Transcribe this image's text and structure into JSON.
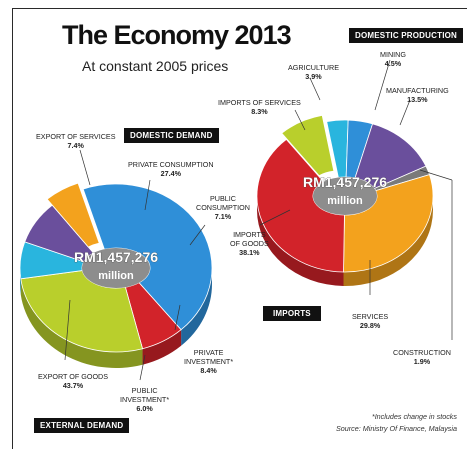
{
  "header": {
    "title": "The Economy 2013",
    "subtitle": "At constant 2005 prices"
  },
  "tags": {
    "domestic_demand": "DOMESTIC DEMAND",
    "external_demand": "EXTERNAL DEMAND",
    "domestic_production": "DOMESTIC PRODUCTION",
    "imports": "IMPORTS"
  },
  "notes": {
    "footnote": "*Includes change in stocks",
    "source": "Source: Ministry Of Finance, Malaysia"
  },
  "colors": {
    "blue": "#2f8fd8",
    "red": "#d2232a",
    "yellowgreen": "#b9cf2c",
    "cyan": "#29b5de",
    "purple": "#6a4f9c",
    "orange": "#f3a21d",
    "grey": "#7a7a7a"
  },
  "chart_data": [
    {
      "type": "pie",
      "total_label": "RM1,457,276",
      "total_unit": "million",
      "slices": [
        {
          "label": "EXPORT OF GOODS",
          "value": 43.7,
          "display": "43.7%",
          "color": "#2f8fd8"
        },
        {
          "label": "EXPORT OF SERVICES",
          "value": 7.4,
          "display": "7.4%",
          "color": "#d2232a"
        },
        {
          "label": "PRIVATE CONSUMPTION",
          "value": 27.4,
          "display": "27.4%",
          "color": "#b9cf2c"
        },
        {
          "label": "PUBLIC CONSUMPTION",
          "value": 7.1,
          "display": "7.1%",
          "color": "#29b5de"
        },
        {
          "label": "PRIVATE INVESTMENT*",
          "value": 8.4,
          "display": "8.4%",
          "color": "#6a4f9c"
        },
        {
          "label": "PUBLIC INVESTMENT*",
          "value": 6.0,
          "display": "6.0%",
          "color": "#f3a21d"
        }
      ]
    },
    {
      "type": "pie",
      "total_label": "RM1,457,276",
      "total_unit": "million",
      "slices": [
        {
          "label": "AGRICULTURE",
          "value": 3.9,
          "display": "3.9%",
          "color": "#29b5de"
        },
        {
          "label": "MINING",
          "value": 4.5,
          "display": "4.5%",
          "color": "#2f8fd8"
        },
        {
          "label": "MANUFACTURING",
          "value": 13.5,
          "display": "13.5%",
          "color": "#6a4f9c"
        },
        {
          "label": "CONSTRUCTION",
          "value": 1.9,
          "display": "1.9%",
          "color": "#7a7a7a"
        },
        {
          "label": "SERVICES",
          "value": 29.8,
          "display": "29.8%",
          "color": "#f3a21d"
        },
        {
          "label": "IMPORTS OF GOODS",
          "value": 38.1,
          "display": "38.1%",
          "color": "#d2232a"
        },
        {
          "label": "IMPORTS OF SERVICES",
          "value": 8.3,
          "display": "8.3%",
          "color": "#b9cf2c"
        }
      ]
    }
  ]
}
